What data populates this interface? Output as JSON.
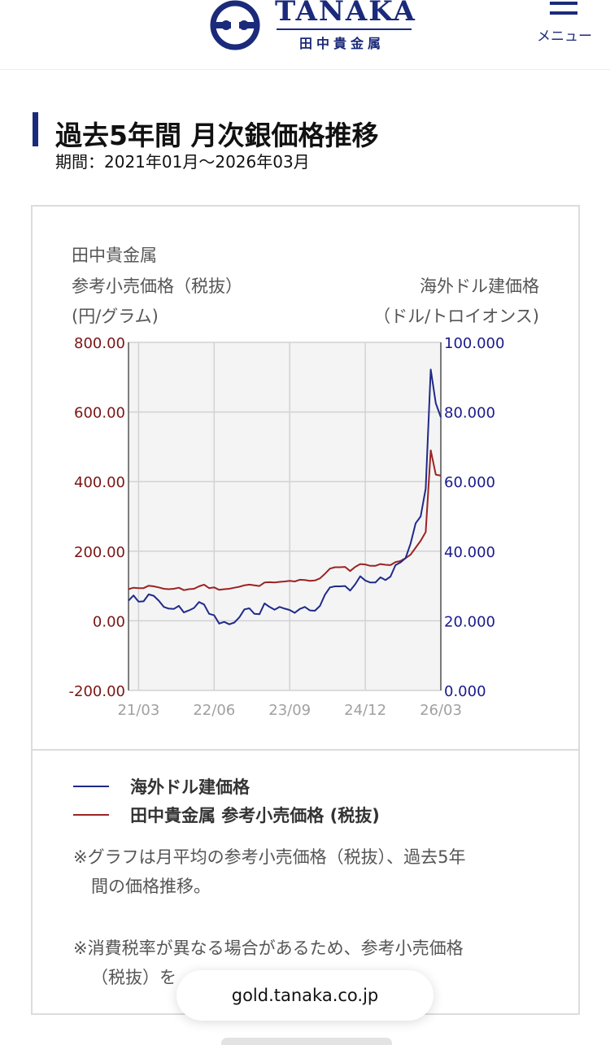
{
  "header": {
    "logo_name": "TANAKA",
    "logo_sub": "田中貴金属",
    "menu_label": "メニュー",
    "brand_color": "#1b2a7a"
  },
  "page": {
    "title": "過去5年間 月次銀価格推移",
    "period": "期間：2021年01月〜2026年03月"
  },
  "chart_labels": {
    "left_axis_title": [
      "田中貴金属",
      "参考小売価格（税抜）",
      "(円/グラム)"
    ],
    "right_axis_title": [
      "海外ドル建価格",
      "（ドル/トロイオンス)"
    ]
  },
  "legend": {
    "usd": "海外ドル建価格",
    "jpy": "田中貴金属 参考小売価格 (税抜)"
  },
  "notes": [
    {
      "first": "※グラフは月平均の参考小売価格（税抜）、過去5年",
      "rest": "間の価格推移。"
    },
    {
      "first": "※消費税率が異なる場合があるため、参考小売価格",
      "rest": "（税抜）を"
    }
  ],
  "url_bar": {
    "text": "gold.tanaka.co.jp"
  },
  "chart_data": {
    "type": "line",
    "x": [
      "2021-01",
      "2021-02",
      "2021-03",
      "2021-04",
      "2021-05",
      "2021-06",
      "2021-07",
      "2021-08",
      "2021-09",
      "2021-10",
      "2021-11",
      "2021-12",
      "2022-01",
      "2022-02",
      "2022-03",
      "2022-04",
      "2022-05",
      "2022-06",
      "2022-07",
      "2022-08",
      "2022-09",
      "2022-10",
      "2022-11",
      "2022-12",
      "2023-01",
      "2023-02",
      "2023-03",
      "2023-04",
      "2023-05",
      "2023-06",
      "2023-07",
      "2023-08",
      "2023-09",
      "2023-10",
      "2023-11",
      "2023-12",
      "2024-01",
      "2024-02",
      "2024-03",
      "2024-04",
      "2024-05",
      "2024-06",
      "2024-07",
      "2024-08",
      "2024-09",
      "2024-10",
      "2024-11",
      "2024-12",
      "2025-01",
      "2025-02",
      "2025-03",
      "2025-04",
      "2025-05",
      "2025-06",
      "2025-07",
      "2025-08",
      "2025-09",
      "2025-10",
      "2025-11",
      "2025-12",
      "2026-01",
      "2026-02",
      "2026-03"
    ],
    "x_ticks": [
      "21/03",
      "22/06",
      "23/09",
      "24/12",
      "26/03"
    ],
    "x_tick_months": [
      "2021-03",
      "2022-06",
      "2023-09",
      "2024-12",
      "2026-03"
    ],
    "left_axis": {
      "ylim": [
        -200,
        800
      ],
      "ticks": [
        "-200.00",
        "0.00",
        "200.00",
        "400.00",
        "600.00",
        "800.00"
      ],
      "tick_values": [
        -200,
        0,
        200,
        400,
        600,
        800
      ],
      "color": "#7a1616"
    },
    "right_axis": {
      "ylim": [
        0,
        100
      ],
      "ticks": [
        "0.000",
        "20.000",
        "40.000",
        "60.000",
        "80.000",
        "100.000"
      ],
      "tick_values": [
        0,
        20,
        40,
        60,
        80,
        100
      ],
      "color": "#1a1a8c"
    },
    "series": [
      {
        "name": "海外ドル建価格",
        "axis": "right",
        "color": "#1f2a8a",
        "values": [
          25.8,
          27.3,
          25.5,
          25.6,
          27.6,
          27.2,
          25.8,
          24.0,
          23.5,
          23.4,
          24.3,
          22.4,
          23.0,
          23.7,
          25.4,
          24.7,
          22.0,
          21.6,
          19.2,
          19.7,
          19.0,
          19.5,
          21.0,
          23.3,
          23.6,
          22.0,
          21.9,
          25.0,
          24.0,
          23.2,
          24.0,
          23.5,
          23.1,
          22.3,
          23.4,
          24.0,
          23.0,
          22.9,
          24.3,
          27.5,
          29.6,
          29.9,
          29.9,
          30.0,
          28.7,
          30.5,
          32.8,
          31.6,
          31.0,
          31.0,
          32.5,
          31.7,
          32.7,
          36.0,
          36.8,
          38.0,
          42.2,
          48.0,
          50.0,
          58.0,
          92.2,
          82.5,
          78.5
        ]
      },
      {
        "name": "田中貴金属 参考小売価格 (税抜)",
        "axis": "left",
        "color": "#9c2323",
        "values": [
          91,
          95,
          94,
          94,
          101,
          99,
          96,
          92,
          91,
          92,
          95,
          88,
          91,
          92,
          99,
          104,
          94,
          96,
          89,
          91,
          92,
          95,
          98,
          102,
          104,
          102,
          100,
          110,
          111,
          110,
          112,
          113,
          115,
          113,
          118,
          117,
          115,
          116,
          122,
          135,
          150,
          154,
          154,
          155,
          143,
          155,
          163,
          162,
          158,
          158,
          163,
          161,
          160,
          169,
          172,
          180,
          190,
          210,
          230,
          255,
          490,
          420,
          417
        ]
      }
    ],
    "grid": true,
    "legend_position": "bottom"
  }
}
